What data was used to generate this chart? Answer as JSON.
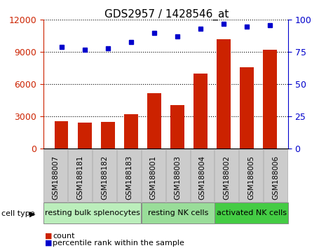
{
  "title": "GDS2957 / 1428546_at",
  "categories": [
    "GSM188007",
    "GSM188181",
    "GSM188182",
    "GSM188183",
    "GSM188001",
    "GSM188003",
    "GSM188004",
    "GSM188002",
    "GSM188005",
    "GSM188006"
  ],
  "bar_values": [
    2550,
    2450,
    2500,
    3200,
    5200,
    4100,
    7000,
    10200,
    7600,
    9200
  ],
  "percentile_values": [
    79,
    77,
    78,
    83,
    90,
    87,
    93,
    97,
    95,
    96
  ],
  "bar_color": "#cc2200",
  "dot_color": "#0000cc",
  "left_ylim": [
    0,
    12000
  ],
  "right_ylim": [
    0,
    100
  ],
  "left_yticks": [
    0,
    3000,
    6000,
    9000,
    12000
  ],
  "right_yticks": [
    0,
    25,
    50,
    75,
    100
  ],
  "cell_groups": [
    {
      "label": "resting bulk splenocytes",
      "start": 0,
      "end": 4,
      "color": "#bbeebb"
    },
    {
      "label": "resting NK cells",
      "start": 4,
      "end": 7,
      "color": "#99dd99"
    },
    {
      "label": "activated NK cells",
      "start": 7,
      "end": 10,
      "color": "#44cc44"
    }
  ],
  "tick_bg_color": "#cccccc",
  "plot_bg_color": "#ffffff",
  "title_fontsize": 11,
  "tick_fontsize": 7.5,
  "group_fontsize": 8,
  "legend_fontsize": 8
}
